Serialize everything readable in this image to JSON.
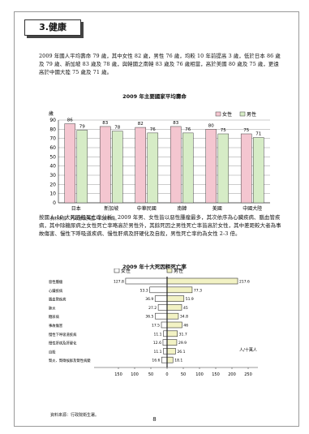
{
  "section": {
    "title": "3.健康"
  },
  "paragraphs": {
    "p1": "2009 年國人平均壽命 79 歲，其中女性 82 歲，男性 76 歲，均較 10 年前提高 3 歲，低於日本 86 歲及 79 歲、新加坡 83 歲及 78 歲，與韓國之南韓 83 歲及 76 歲相當，高於美國 80 歲及 75 歲，更遠高於中國大陸 75 歲及 71 歲。",
    "p2": "按國人 10 大死因粗死亡率分析，2009 年男、女性皆以惡性腫瘤最多，其次依序為心臟疾病、腦血管疾病，其中除糖尿病之女性死亡率略高於男性外，其餘死因之男性死亡率皆高於女性，其中差距較大者為事故傷害、慢性下呼吸道疾病、慢性肝病及肝硬化及自殺，男性死亡率約為女性 2-3 倍。"
  },
  "chart_data": [
    {
      "type": "bar",
      "title": "2009 年主要國家平均壽命",
      "ylabel": "歲",
      "ylim": [
        0,
        90
      ],
      "yticks": [
        0,
        10,
        20,
        30,
        40,
        50,
        60,
        70,
        80,
        90
      ],
      "categories": [
        "日本",
        "新加坡",
        "中華民國",
        "南韓",
        "美國",
        "中國大陸"
      ],
      "series": [
        {
          "name": "女性",
          "values": [
            86,
            83,
            82,
            83,
            80,
            75
          ],
          "color": "#f4c6d0"
        },
        {
          "name": "男性",
          "values": [
            79,
            78,
            76,
            76,
            75,
            71
          ],
          "color": "#d6ecc6"
        }
      ],
      "legend": "top-right",
      "source": "資料來源：內政部及美國人口資料局。"
    },
    {
      "type": "bar",
      "orientation": "horizontal-butterfly",
      "title": "2009 年十大死因粗死亡率",
      "unit": "人/十萬人",
      "categories": [
        "惡性腫瘤",
        "心臟疾病",
        "腦血管疾病",
        "肺炎",
        "糖尿病",
        "事故傷害",
        "慢性下呼吸道疾病",
        "慢性肝病及肝硬化",
        "自殺",
        "腎炎、腎徵候群及腎性病變"
      ],
      "series": [
        {
          "name": "女性",
          "values": [
            127.8,
            53.3,
            36.9,
            27.2,
            36.5,
            17.5,
            11.1,
            12.6,
            11.1,
            16.6
          ],
          "color": "#ffffff"
        },
        {
          "name": "男性",
          "values": [
            217.6,
            77.3,
            51.9,
            45.0,
            34.8,
            46.0,
            31.7,
            29.9,
            26.1,
            18.1
          ],
          "color": "#f2f2c4"
        }
      ],
      "xticks": [
        "150",
        "100",
        "50",
        "0",
        "50",
        "100",
        "150",
        "200",
        "250"
      ],
      "source": "資料來源：行政院衛生署。"
    }
  ],
  "page": {
    "number": "8"
  }
}
